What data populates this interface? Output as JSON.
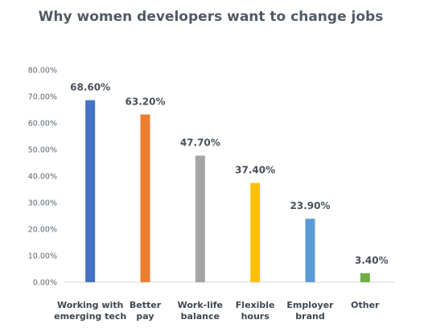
{
  "chart_data": {
    "type": "bar",
    "title": "Why women developers want to change jobs",
    "categories": [
      [
        "Working with",
        "emerging tech"
      ],
      [
        "Better",
        "pay"
      ],
      [
        "Work-life",
        "balance"
      ],
      [
        "Flexible",
        "hours"
      ],
      [
        "Employer",
        "brand"
      ],
      [
        "Other"
      ]
    ],
    "values": [
      68.6,
      63.2,
      47.7,
      37.4,
      23.9,
      3.4
    ],
    "value_labels": [
      "68.60%",
      "63.20%",
      "47.70%",
      "37.40%",
      "23.90%",
      "3.40%"
    ],
    "colors": [
      "#4472c4",
      "#ed7d31",
      "#a5a5a5",
      "#ffc000",
      "#5b9bd5",
      "#70ad47"
    ],
    "ylim": [
      0,
      80
    ],
    "yticks": [
      0,
      10,
      20,
      30,
      40,
      50,
      60,
      70,
      80
    ],
    "ytick_labels": [
      "0.00%",
      "10.00%",
      "20.00%",
      "30.00%",
      "40.00%",
      "50.00%",
      "60.00%",
      "70.00%",
      "80.00%"
    ],
    "grid": false,
    "legend": "none"
  }
}
